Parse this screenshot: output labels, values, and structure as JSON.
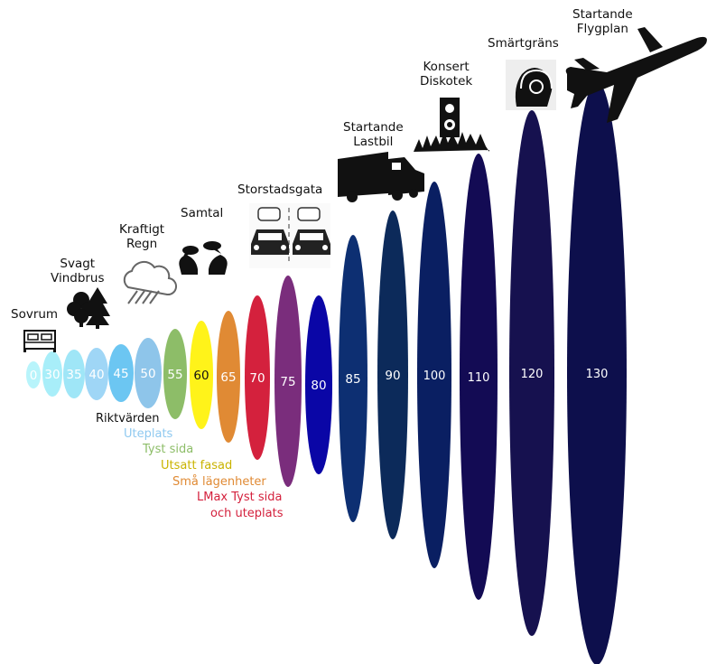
{
  "levels": [
    {
      "value": "0",
      "color": "#b8f4fb",
      "text": "#ffffff"
    },
    {
      "value": "30",
      "color": "#a8eef9",
      "text": "#ffffff"
    },
    {
      "value": "35",
      "color": "#9fe6f7",
      "text": "#ffffff"
    },
    {
      "value": "40",
      "color": "#9fd6f6",
      "text": "#ffffff"
    },
    {
      "value": "45",
      "color": "#6cc6f2",
      "text": "#ffffff"
    },
    {
      "value": "50",
      "color": "#8ec5ea",
      "text": "#ffffff"
    },
    {
      "value": "55",
      "color": "#8dbd68",
      "text": "#ffffff"
    },
    {
      "value": "60",
      "color": "#fff31a",
      "text": "#111111"
    },
    {
      "value": "65",
      "color": "#e08a34",
      "text": "#ffffff"
    },
    {
      "value": "70",
      "color": "#d4213d",
      "text": "#ffffff"
    },
    {
      "value": "75",
      "color": "#7a2d7c",
      "text": "#ffffff"
    },
    {
      "value": "80",
      "color": "#0a06a6",
      "text": "#ffffff"
    },
    {
      "value": "85",
      "color": "#0d2f72",
      "text": "#ffffff"
    },
    {
      "value": "90",
      "color": "#0c2a5a",
      "text": "#ffffff"
    },
    {
      "value": "100",
      "color": "#0a1f62",
      "text": "#ffffff"
    },
    {
      "value": "110",
      "color": "#130b54",
      "text": "#ffffff"
    },
    {
      "value": "120",
      "color": "#16114f",
      "text": "#ffffff"
    },
    {
      "value": "130",
      "color": "#0d0f4c",
      "text": "#ffffff"
    }
  ],
  "sources": {
    "sovrum": "Sovrum",
    "vindbrus": [
      "Svagt",
      "Vindbrus"
    ],
    "regn": [
      "Kraftigt",
      "Regn"
    ],
    "samtal": "Samtal",
    "storstadsgata": "Storstadsgata",
    "lastbil": [
      "Startande",
      "Lastbil"
    ],
    "konsert": [
      "Konsert",
      "Diskotek"
    ],
    "smartgrans": "Smärtgräns",
    "flygplan": [
      "Startande",
      "Flygplan"
    ]
  },
  "guidelines": {
    "heading": "Riktvärden",
    "items": [
      {
        "text": "Uteplats",
        "color": "#8fc9f0"
      },
      {
        "text": "Tyst sida",
        "color": "#8dbd68"
      },
      {
        "text": "Utsatt fasad",
        "color": "#c9b300"
      },
      {
        "text": "Små lägenheter",
        "color": "#e08a34"
      },
      {
        "text": "LMax Tyst sida",
        "color": "#d4213d"
      },
      {
        "text": "och uteplats",
        "color": "#d4213d"
      }
    ]
  },
  "icons": [
    "bed-icon",
    "trees-icon",
    "rain-cloud-icon",
    "conversation-icon",
    "traffic-icon",
    "truck-icon",
    "speaker-concert-icon",
    "headphones-head-icon",
    "airplane-icon"
  ]
}
